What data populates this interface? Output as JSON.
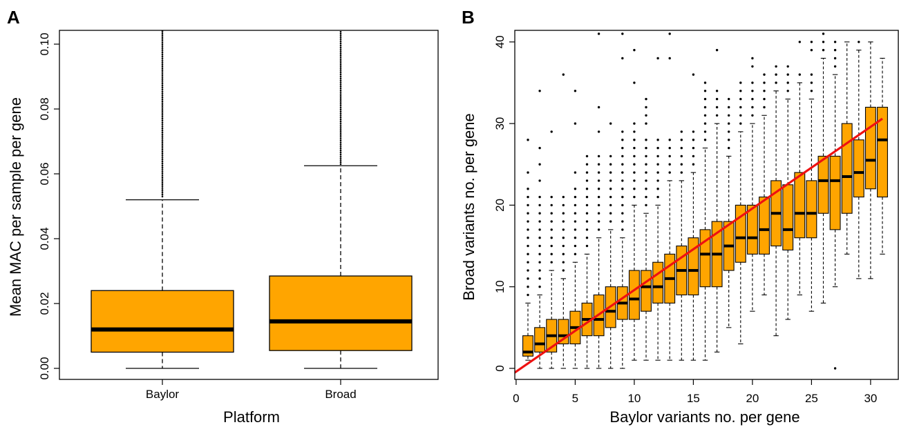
{
  "panels": {
    "a": {
      "label": "A"
    },
    "b": {
      "label": "B"
    }
  },
  "colors": {
    "box_fill": "#ffa500",
    "box_stroke": "#000000",
    "fit_line": "#ee1111"
  },
  "chart_data": [
    {
      "panel": "A",
      "type": "box",
      "xlabel": "Platform",
      "ylabel": "Mean MAC per sample per gene",
      "categories": [
        "Baylor",
        "Broad"
      ],
      "ylim": [
        0,
        0.1
      ],
      "yticks": [
        0.0,
        0.02,
        0.04,
        0.06,
        0.08,
        0.1
      ],
      "ytick_labels": [
        "0.00",
        "0.02",
        "0.04",
        "0.06",
        "0.08",
        "0.10"
      ],
      "boxes": [
        {
          "name": "Baylor",
          "whisker_low": 0.0,
          "q1": 0.005,
          "median": 0.012,
          "q3": 0.024,
          "whisker_high": 0.052,
          "outliers_from": 0.053,
          "outliers_to": 0.104
        },
        {
          "name": "Broad",
          "whisker_low": 0.0,
          "q1": 0.0055,
          "median": 0.0145,
          "q3": 0.0285,
          "whisker_high": 0.0625,
          "outliers_from": 0.063,
          "outliers_to": 0.104
        }
      ],
      "grid": false
    },
    {
      "panel": "B",
      "type": "box",
      "xlabel": "Baylor variants no. per gene",
      "ylabel": "Broad variants no. per gene",
      "xlim": [
        -1,
        31
      ],
      "ylim": [
        -1.5,
        41.5
      ],
      "xticks": [
        0,
        5,
        10,
        15,
        20,
        25,
        30
      ],
      "xtick_labels": [
        "0",
        "5",
        "10",
        "15",
        "20",
        "25",
        "30"
      ],
      "yticks": [
        0,
        10,
        20,
        30,
        40
      ],
      "ytick_labels": [
        "0",
        "10",
        "20",
        "30",
        "40"
      ],
      "boxes": [
        {
          "x": 1,
          "whisker_low": 1,
          "q1": 1.5,
          "median": 2,
          "q3": 4,
          "whisker_high": 8,
          "outliers": [
            9,
            10,
            11,
            12,
            13,
            14,
            15,
            16,
            17,
            18,
            19,
            20,
            21,
            22,
            24,
            28
          ]
        },
        {
          "x": 2,
          "whisker_low": 0,
          "q1": 2,
          "median": 3,
          "q3": 5,
          "whisker_high": 9,
          "outliers": [
            10,
            11,
            12,
            13,
            14,
            15,
            16,
            17,
            18,
            19,
            20,
            21,
            23,
            25,
            27,
            34
          ]
        },
        {
          "x": 3,
          "whisker_low": 0,
          "q1": 2,
          "median": 4,
          "q3": 6,
          "whisker_high": 12,
          "outliers": [
            13,
            14,
            15,
            16,
            17,
            18,
            19,
            20,
            21,
            29
          ]
        },
        {
          "x": 4,
          "whisker_low": 0,
          "q1": 3,
          "median": 4,
          "q3": 6,
          "whisker_high": 11,
          "outliers": [
            12,
            13,
            14,
            15,
            16,
            17,
            18,
            19,
            20,
            21,
            36
          ]
        },
        {
          "x": 5,
          "whisker_low": 0,
          "q1": 3,
          "median": 5,
          "q3": 7,
          "whisker_high": 13,
          "outliers": [
            14,
            15,
            16,
            17,
            18,
            19,
            20,
            21,
            22,
            24,
            30,
            34
          ]
        },
        {
          "x": 6,
          "whisker_low": 0,
          "q1": 4,
          "median": 6,
          "q3": 8,
          "whisker_high": 14,
          "outliers": [
            15,
            16,
            17,
            18,
            19,
            20,
            21,
            22,
            23,
            24,
            25,
            26
          ]
        },
        {
          "x": 7,
          "whisker_low": 0,
          "q1": 4,
          "median": 6,
          "q3": 9,
          "whisker_high": 16,
          "outliers": [
            17,
            18,
            19,
            20,
            21,
            22,
            23,
            24,
            25,
            26,
            29,
            32,
            41
          ]
        },
        {
          "x": 8,
          "whisker_low": 0,
          "q1": 5,
          "median": 7,
          "q3": 10,
          "whisker_high": 17,
          "outliers": [
            18,
            19,
            20,
            21,
            22,
            23,
            24,
            25,
            26,
            30
          ]
        },
        {
          "x": 9,
          "whisker_low": 0,
          "q1": 6,
          "median": 8,
          "q3": 10,
          "whisker_high": 16,
          "outliers": [
            17,
            18,
            19,
            20,
            21,
            22,
            23,
            24,
            25,
            26,
            27,
            28,
            29,
            38,
            41
          ]
        },
        {
          "x": 10,
          "whisker_low": 1,
          "q1": 6,
          "median": 8.5,
          "q3": 12,
          "whisker_high": 20,
          "outliers": [
            21,
            22,
            23,
            24,
            25,
            26,
            27,
            28,
            29,
            30,
            35,
            39
          ]
        },
        {
          "x": 11,
          "whisker_low": 1,
          "q1": 7,
          "median": 10,
          "q3": 12,
          "whisker_high": 19,
          "outliers": [
            20,
            21,
            22,
            23,
            24,
            25,
            26,
            27,
            28,
            30,
            31,
            32,
            33
          ]
        },
        {
          "x": 12,
          "whisker_low": 1,
          "q1": 8,
          "median": 10,
          "q3": 13,
          "whisker_high": 20,
          "outliers": [
            21,
            22,
            23,
            24,
            25,
            26,
            27,
            28,
            38
          ]
        },
        {
          "x": 13,
          "whisker_low": 1,
          "q1": 8,
          "median": 11,
          "q3": 14,
          "whisker_high": 23,
          "outliers": [
            24,
            25,
            26,
            27,
            28,
            38,
            41
          ]
        },
        {
          "x": 14,
          "whisker_low": 1,
          "q1": 9,
          "median": 12,
          "q3": 15,
          "whisker_high": 23,
          "outliers": [
            24,
            25,
            26,
            27,
            28,
            29
          ]
        },
        {
          "x": 15,
          "whisker_low": 1,
          "q1": 9,
          "median": 12,
          "q3": 16,
          "whisker_high": 24,
          "outliers": [
            25,
            26,
            27,
            28,
            29,
            36
          ]
        },
        {
          "x": 16,
          "whisker_low": 1,
          "q1": 10,
          "median": 14,
          "q3": 17,
          "whisker_high": 27,
          "outliers": [
            28,
            29,
            30,
            31,
            32,
            33,
            34,
            35
          ]
        },
        {
          "x": 17,
          "whisker_low": 2,
          "q1": 10,
          "median": 14,
          "q3": 18,
          "whisker_high": 30,
          "outliers": [
            31,
            32,
            33,
            34,
            39
          ]
        },
        {
          "x": 18,
          "whisker_low": 5,
          "q1": 12,
          "median": 15,
          "q3": 18,
          "whisker_high": 26,
          "outliers": [
            27,
            28,
            29,
            30,
            31,
            32,
            33
          ]
        },
        {
          "x": 19,
          "whisker_low": 3,
          "q1": 13,
          "median": 16,
          "q3": 20,
          "whisker_high": 29,
          "outliers": [
            30,
            31,
            32,
            33,
            34,
            35
          ]
        },
        {
          "x": 20,
          "whisker_low": 7,
          "q1": 14,
          "median": 16,
          "q3": 20,
          "whisker_high": 30,
          "outliers": [
            31,
            32,
            33,
            34,
            35,
            37,
            38
          ]
        },
        {
          "x": 21,
          "whisker_low": 9,
          "q1": 14,
          "median": 17,
          "q3": 21,
          "whisker_high": 31,
          "outliers": [
            32,
            33,
            34,
            35,
            36
          ]
        },
        {
          "x": 22,
          "whisker_low": 4,
          "q1": 15,
          "median": 19,
          "q3": 23,
          "whisker_high": 34,
          "outliers": [
            35,
            36,
            37
          ]
        },
        {
          "x": 23,
          "whisker_low": 6,
          "q1": 14.5,
          "median": 17,
          "q3": 22.5,
          "whisker_high": 33,
          "outliers": [
            34,
            35,
            36,
            37
          ]
        },
        {
          "x": 24,
          "whisker_low": 9,
          "q1": 16,
          "median": 19,
          "q3": 24,
          "whisker_high": 35,
          "outliers": [
            36,
            40
          ]
        },
        {
          "x": 25,
          "whisker_low": 7,
          "q1": 16,
          "median": 19,
          "q3": 23,
          "whisker_high": 33,
          "outliers": [
            34,
            35,
            36,
            39,
            40
          ]
        },
        {
          "x": 26,
          "whisker_low": 8,
          "q1": 19,
          "median": 23,
          "q3": 26,
          "whisker_high": 38,
          "outliers": [
            39,
            40,
            41
          ]
        },
        {
          "x": 27,
          "whisker_low": 10,
          "q1": 17,
          "median": 23,
          "q3": 26,
          "whisker_high": 36,
          "outliers": [
            0,
            37,
            38,
            39,
            40
          ]
        },
        {
          "x": 28,
          "whisker_low": 14,
          "q1": 19,
          "median": 23.5,
          "q3": 30,
          "whisker_high": 40,
          "outliers": []
        },
        {
          "x": 29,
          "whisker_low": 11,
          "q1": 21,
          "median": 24,
          "q3": 28,
          "whisker_high": 39,
          "outliers": [
            40
          ]
        },
        {
          "x": 30,
          "whisker_low": 11,
          "q1": 22,
          "median": 25.5,
          "q3": 32,
          "whisker_high": 40,
          "outliers": []
        },
        {
          "x": 31,
          "whisker_low": 14,
          "q1": 21,
          "median": 28,
          "q3": 32,
          "whisker_high": 38,
          "outliers": []
        }
      ],
      "fit_line": {
        "intercept": -0.4,
        "slope": 1.0,
        "x_from": -1,
        "x_to": 31
      },
      "grid": false
    }
  ]
}
